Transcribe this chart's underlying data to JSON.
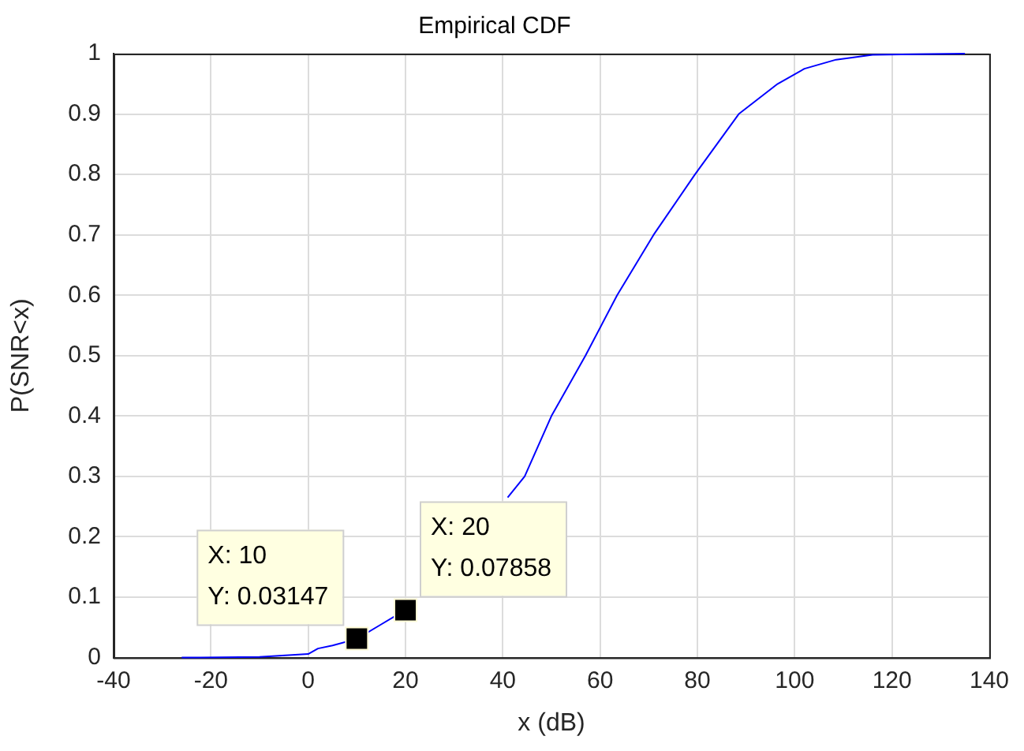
{
  "chart_data": {
    "type": "line",
    "title": "Empirical CDF",
    "xlabel": "x (dB)",
    "ylabel": "P(SNR<x)",
    "series": [
      {
        "color": "#0000ff",
        "x": [
          -26,
          -10,
          0,
          2,
          5,
          10,
          15,
          20,
          25,
          30,
          35,
          40,
          41,
          44.5,
          50,
          57,
          63.5,
          71,
          79.5,
          88.5,
          96.5,
          102,
          108.5,
          116,
          125,
          135
        ],
        "values": [
          0,
          0.001,
          0.006,
          0.015,
          0.02,
          0.031,
          0.055,
          0.079,
          null,
          null,
          null,
          null,
          0.265,
          0.3,
          0.4,
          0.5,
          0.6,
          0.7,
          0.8,
          0.9,
          0.95,
          0.975,
          0.99,
          0.998,
          0.999,
          1
        ]
      }
    ],
    "xlim": [
      -40,
      140
    ],
    "xticks": [
      -40,
      -20,
      0,
      20,
      40,
      60,
      80,
      100,
      120,
      140
    ],
    "ylim": [
      0,
      1
    ],
    "yticks": [
      0,
      0.1,
      0.2,
      0.3,
      0.4,
      0.5,
      0.6,
      0.7,
      0.8,
      0.9,
      1
    ],
    "grid": true,
    "legend": false,
    "marker": "none",
    "line_style": "solid",
    "annotations": [
      {
        "text": "X: 10\nY: 0.03147",
        "x": 10,
        "y": 0.03147
      },
      {
        "text": "X: 20\nY: 0.07858",
        "x": 20,
        "y": 0.07858
      }
    ]
  }
}
